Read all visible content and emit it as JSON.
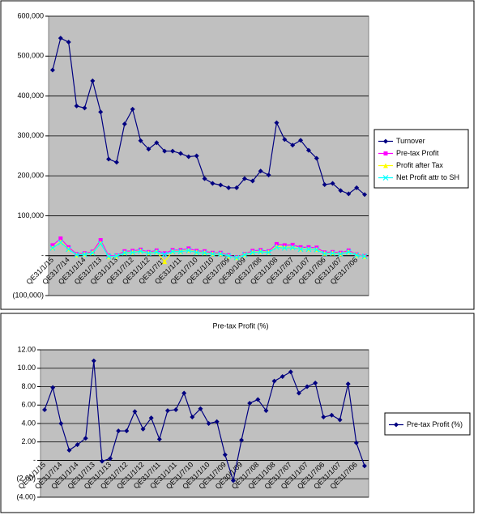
{
  "chart_data": [
    {
      "type": "line",
      "categories": [
        "QE31/1/15",
        null,
        "QE31/7/14",
        null,
        "QE31/1/14",
        null,
        "QE31/7/13",
        null,
        "QE31/1/13",
        null,
        "QE31/7/12",
        null,
        "QE31/1/12",
        null,
        "QE31/7/11",
        null,
        "QE31/1/11",
        null,
        "QE31/7/10",
        null,
        "QE31/1/10",
        null,
        "QE31/7/09",
        null,
        "QE30/1/09",
        null,
        "QE31/7/08",
        null,
        "QE31/1/08",
        null,
        "QE31/7/07",
        null,
        "QE31/1/07",
        null,
        "QE31/7/06",
        null,
        "QE31/1/07",
        null,
        "QE31/7/06",
        null
      ],
      "series": [
        {
          "name": "Turnover",
          "color": "#000080",
          "marker": "diamond",
          "values": [
            465000,
            545000,
            535000,
            375000,
            370000,
            438000,
            360000,
            242000,
            234000,
            330000,
            367000,
            288000,
            267000,
            283000,
            262000,
            262000,
            256000,
            248000,
            250000,
            193000,
            181000,
            177000,
            170000,
            170000,
            193000,
            187000,
            212000,
            202000,
            333000,
            291000,
            277000,
            289000,
            264000,
            244000,
            178000,
            181000,
            163000,
            155000,
            170000,
            153000
          ]
        },
        {
          "name": "Pre-tax Profit",
          "color": "#ff00ff",
          "marker": "square",
          "values": [
            26000,
            43000,
            21000,
            4000,
            6000,
            10000,
            39000,
            0,
            500,
            11000,
            12000,
            15000,
            9000,
            13000,
            6000,
            14000,
            14000,
            18000,
            12000,
            11000,
            7000,
            7000,
            1000,
            -4000,
            4000,
            12000,
            14000,
            11000,
            29000,
            26000,
            27000,
            21000,
            21000,
            20000,
            8000,
            9000,
            7000,
            13000,
            3000,
            -1000
          ]
        },
        {
          "name": "Profit after Tax",
          "color": "#ffff00",
          "marker": "triangle",
          "values": [
            20000,
            35000,
            17000,
            2000,
            4000,
            8000,
            32000,
            -2000,
            -1000,
            8000,
            9000,
            12000,
            7000,
            10000,
            -15000,
            11000,
            11000,
            14000,
            9000,
            8000,
            5000,
            5000,
            -1000,
            -5000,
            3000,
            9000,
            11000,
            9000,
            23000,
            21000,
            21000,
            17000,
            17000,
            16000,
            6000,
            7000,
            5000,
            10000,
            2000,
            -2000
          ]
        },
        {
          "name": "Net Profit attr to SH",
          "color": "#00ffff",
          "marker": "x",
          "values": [
            19000,
            33000,
            16000,
            2000,
            3000,
            7000,
            30000,
            -2000,
            -1000,
            7000,
            8000,
            11000,
            6000,
            9000,
            3000,
            10000,
            10000,
            13000,
            8000,
            7000,
            4000,
            4000,
            -1000,
            -5000,
            2000,
            8000,
            10000,
            8000,
            21000,
            19000,
            20000,
            16000,
            16000,
            15000,
            5000,
            6000,
            4000,
            9000,
            1000,
            -2000
          ]
        }
      ],
      "ylim": [
        -100000,
        600000
      ],
      "yticks": [
        {
          "value": -100000,
          "label": "(100,000)"
        },
        {
          "value": 0,
          "label": "-"
        },
        {
          "value": 100000,
          "label": "100,000"
        },
        {
          "value": 200000,
          "label": "200,000"
        },
        {
          "value": 300000,
          "label": "300,000"
        },
        {
          "value": 400000,
          "label": "400,000"
        },
        {
          "value": 500000,
          "label": "500,000"
        },
        {
          "value": 600000,
          "label": "600,000"
        }
      ],
      "grid": true,
      "legend": "right"
    },
    {
      "type": "line",
      "title": "Pre-tax Profit (%)",
      "categories": [
        "QE31/1/15",
        null,
        "QE31/7/14",
        null,
        "QE31/1/14",
        null,
        "QE31/7/13",
        null,
        "QE31/1/13",
        null,
        "QE31/7/12",
        null,
        "QE31/1/12",
        null,
        "QE31/7/11",
        null,
        "QE31/1/11",
        null,
        "QE31/7/10",
        null,
        "QE31/1/10",
        null,
        "QE31/7/09",
        null,
        "QE30/1/09",
        null,
        "QE31/7/08",
        null,
        "QE31/1/08",
        null,
        "QE31/7/07",
        null,
        "QE31/1/07",
        null,
        "QE31/7/06",
        null,
        "QE31/1/07",
        null,
        "QE31/7/06",
        null
      ],
      "series": [
        {
          "name": "Pre-tax Profit (%)",
          "color": "#000080",
          "marker": "diamond",
          "values": [
            5.5,
            7.9,
            4.0,
            1.1,
            1.7,
            2.4,
            10.8,
            -0.1,
            0.2,
            3.2,
            3.2,
            5.3,
            3.4,
            4.6,
            2.3,
            5.4,
            5.5,
            7.3,
            4.7,
            5.6,
            4.0,
            4.2,
            0.6,
            -2.2,
            2.2,
            6.2,
            6.6,
            5.4,
            8.6,
            9.1,
            9.6,
            7.3,
            8.0,
            8.4,
            4.7,
            4.9,
            4.4,
            8.3,
            1.9,
            -0.6
          ]
        }
      ],
      "ylim": [
        -4,
        12
      ],
      "yticks": [
        {
          "value": -4,
          "label": "(4.00)"
        },
        {
          "value": -2,
          "label": "(2.00)"
        },
        {
          "value": 0,
          "label": "-"
        },
        {
          "value": 2,
          "label": "2.00"
        },
        {
          "value": 4,
          "label": "4.00"
        },
        {
          "value": 6,
          "label": "6.00"
        },
        {
          "value": 8,
          "label": "8.00"
        },
        {
          "value": 10,
          "label": "10.00"
        },
        {
          "value": 12,
          "label": "12.00"
        }
      ],
      "grid": true,
      "legend": "right"
    }
  ]
}
